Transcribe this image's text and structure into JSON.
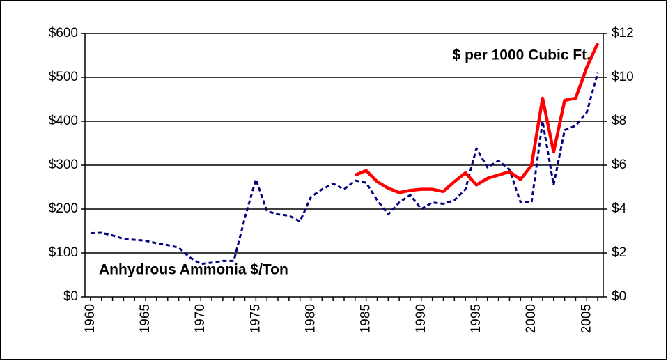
{
  "chart_data": {
    "type": "line",
    "annotations": [
      "$ per 1000 Cubic Ft.",
      "Anhydrous Ammonia $/Ton"
    ],
    "x": [
      1960,
      1961,
      1962,
      1963,
      1964,
      1965,
      1966,
      1967,
      1968,
      1969,
      1970,
      1971,
      1972,
      1973,
      1974,
      1975,
      1976,
      1977,
      1978,
      1979,
      1980,
      1981,
      1982,
      1983,
      1984,
      1985,
      1986,
      1987,
      1988,
      1989,
      1990,
      1991,
      1992,
      1993,
      1994,
      1995,
      1996,
      1997,
      1998,
      1999,
      2000,
      2001,
      2002,
      2003,
      2004,
      2005,
      2006
    ],
    "series": [
      {
        "name": "Anhydrous Ammonia $/Ton",
        "color": "#000080",
        "dashed": true,
        "axis": "y",
        "values": [
          145,
          146,
          140,
          132,
          130,
          128,
          122,
          118,
          112,
          90,
          75,
          78,
          82,
          82,
          180,
          268,
          195,
          188,
          185,
          172,
          228,
          245,
          258,
          245,
          265,
          260,
          220,
          188,
          215,
          232,
          200,
          215,
          212,
          220,
          245,
          338,
          295,
          310,
          290,
          215,
          215,
          400,
          255,
          380,
          390,
          420,
          510
        ]
      },
      {
        "name": "$ per 1000 Cubic Ft.",
        "color": "#ff0000",
        "dashed": false,
        "axis": "y2",
        "values": [
          null,
          null,
          null,
          null,
          null,
          null,
          null,
          null,
          null,
          null,
          null,
          null,
          null,
          null,
          null,
          null,
          null,
          null,
          null,
          null,
          null,
          null,
          null,
          null,
          5.55,
          5.75,
          5.25,
          4.95,
          4.75,
          4.85,
          4.9,
          4.9,
          4.8,
          5.25,
          5.65,
          5.1,
          5.4,
          5.55,
          5.7,
          5.35,
          6.0,
          9.05,
          6.6,
          8.95,
          9.05,
          10.45,
          11.55
        ]
      }
    ],
    "xlim": [
      1959.5,
      2006.5
    ],
    "xticks": [
      1960,
      1965,
      1970,
      1975,
      1980,
      1985,
      1990,
      1995,
      2000,
      2005
    ],
    "xminorticks": [
      1960,
      1961,
      1962,
      1963,
      1964,
      1965,
      1966,
      1967,
      1968,
      1969,
      1970,
      1971,
      1972,
      1973,
      1974,
      1975,
      1976,
      1977,
      1978,
      1979,
      1980,
      1981,
      1982,
      1983,
      1984,
      1985,
      1986,
      1987,
      1988,
      1989,
      1990,
      1991,
      1992,
      1993,
      1994,
      1995,
      1996,
      1997,
      1998,
      1999,
      2000,
      2001,
      2002,
      2003,
      2004,
      2005,
      2006
    ],
    "ylim": [
      0,
      600
    ],
    "yticks": [
      {
        "value": 0,
        "label": "$0"
      },
      {
        "value": 100,
        "label": "$100"
      },
      {
        "value": 200,
        "label": "$200"
      },
      {
        "value": 300,
        "label": "$300"
      },
      {
        "value": 400,
        "label": "$400"
      },
      {
        "value": 500,
        "label": "$500"
      },
      {
        "value": 600,
        "label": "$600"
      }
    ],
    "y2lim": [
      0,
      12
    ],
    "y2ticks": [
      {
        "value": 0,
        "label": "$0"
      },
      {
        "value": 2,
        "label": "$2"
      },
      {
        "value": 4,
        "label": "$4"
      },
      {
        "value": 6,
        "label": "$6"
      },
      {
        "value": 8,
        "label": "$8"
      },
      {
        "value": 10,
        "label": "$10"
      },
      {
        "value": 12,
        "label": "$12"
      }
    ],
    "grid": true
  }
}
